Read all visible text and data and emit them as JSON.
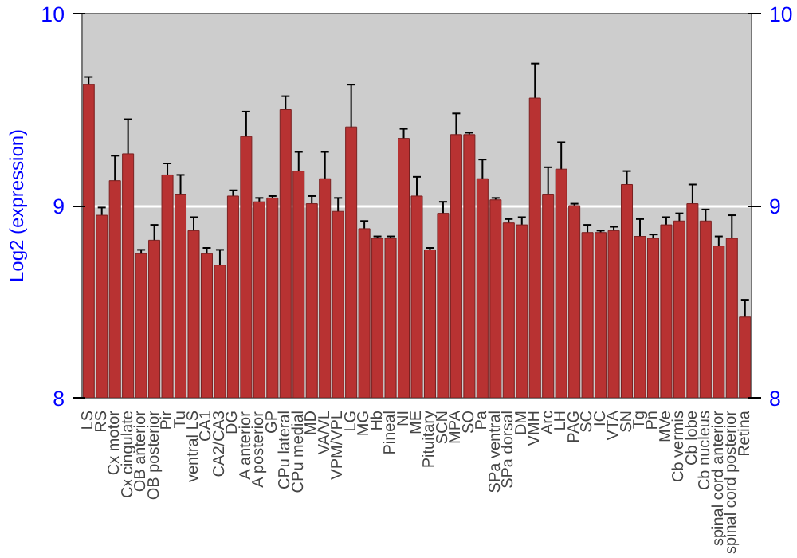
{
  "chart_data": {
    "type": "bar",
    "ylabel": "Log2 (expression)",
    "categories": [
      "LS",
      "RS",
      "Cx motor",
      "Cx cingulate",
      "OB anterior",
      "OB posterior",
      "Pir",
      "Tu",
      "ventral LS",
      "CA1",
      "CA2/CA3",
      "DG",
      "A anterior",
      "A posterior",
      "GP",
      "CPu lateral",
      "CPu medial",
      "MD",
      "VA/VL",
      "VPM/VPL",
      "LG",
      "MG",
      "Hb",
      "Pineal",
      "NI",
      "ME",
      "Pituitary",
      "SCN",
      "MPA",
      "SO",
      "Pa",
      "SPa ventral",
      "SPa dorsal",
      "DM",
      "VMH",
      "Arc",
      "LH",
      "PAG",
      "SC",
      "IC",
      "VTA",
      "SN",
      "Tg",
      "Pn",
      "MVe",
      "Cb vermis",
      "Cb lobe",
      "Cb nucleus",
      "spinal cord anterior",
      "spinal cord posterior",
      "Retina"
    ],
    "values": [
      9.63,
      8.95,
      9.13,
      9.27,
      8.75,
      8.82,
      9.16,
      9.06,
      8.87,
      8.75,
      8.69,
      9.05,
      9.36,
      9.02,
      9.04,
      9.5,
      9.18,
      9.01,
      9.14,
      8.97,
      9.41,
      8.88,
      8.83,
      8.83,
      9.35,
      9.05,
      8.77,
      8.96,
      9.37,
      9.37,
      9.14,
      9.03,
      8.91,
      8.9,
      9.56,
      9.06,
      9.19,
      9.0,
      8.86,
      8.86,
      8.87,
      9.11,
      8.84,
      8.83,
      8.9,
      8.92,
      9.01,
      8.92,
      8.79,
      8.83,
      8.42
    ],
    "errors": [
      0.04,
      0.04,
      0.13,
      0.18,
      0.02,
      0.08,
      0.06,
      0.1,
      0.07,
      0.03,
      0.08,
      0.03,
      0.13,
      0.02,
      0.01,
      0.07,
      0.1,
      0.04,
      0.14,
      0.07,
      0.22,
      0.04,
      0.01,
      0.01,
      0.05,
      0.1,
      0.01,
      0.06,
      0.11,
      0.01,
      0.1,
      0.01,
      0.02,
      0.04,
      0.18,
      0.14,
      0.14,
      0.01,
      0.04,
      0.01,
      0.02,
      0.07,
      0.09,
      0.02,
      0.04,
      0.04,
      0.1,
      0.06,
      0.05,
      0.12,
      0.09
    ],
    "color": "#b83232",
    "ylim": [
      8,
      10
    ],
    "yticks": [
      8,
      9,
      10
    ],
    "y2lim": [
      8,
      10
    ],
    "y2ticks": [
      8,
      9,
      10
    ],
    "grid": "y"
  }
}
